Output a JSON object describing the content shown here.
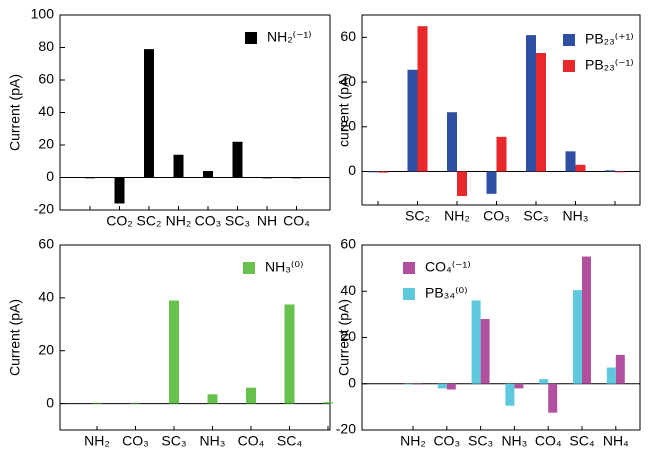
{
  "chart_data": [
    {
      "type": "bar",
      "ylabel": "Current (pA)",
      "categories": [
        null,
        "CO₂",
        "SC₂",
        "NH₂",
        "CO₃",
        "SC₃",
        "NH",
        "CO₄"
      ],
      "series": [
        {
          "name": "NH₂⁽⁻¹⁾",
          "color": "#000000",
          "values": [
            0,
            -16,
            79,
            14,
            4,
            22,
            -0.3,
            0
          ]
        }
      ],
      "ylim": [
        -20,
        100
      ],
      "yticks": [
        -20,
        0,
        20,
        40,
        60,
        80,
        100
      ]
    },
    {
      "type": "bar",
      "ylabel": "current (pA)",
      "categories": [
        null,
        "SC₂",
        "NH₂",
        "CO₃",
        "SC₃",
        "NH₃",
        null
      ],
      "series": [
        {
          "name": "PB₂₃⁽⁺¹⁾",
          "color": "#2f4fa3",
          "values": [
            0,
            45.5,
            26.5,
            -10,
            61,
            9,
            0.5
          ]
        },
        {
          "name": "PB₂₃⁽⁻¹⁾",
          "color": "#e8282b",
          "values": [
            -0.5,
            65,
            -11,
            15.5,
            53,
            3,
            0
          ]
        }
      ],
      "ylim": [
        -15,
        70
      ],
      "yticks": [
        0,
        20,
        40,
        60
      ]
    },
    {
      "type": "bar",
      "ylabel": "Current (pA)",
      "categories": [
        "NH₂",
        "CO₃",
        "SC₃",
        "NH₃",
        "CO₄",
        "SC₄",
        null
      ],
      "series": [
        {
          "name": "NH₃⁽⁰⁾",
          "color": "#66c14d",
          "values": [
            0.3,
            0.3,
            39,
            3.5,
            6,
            37.5,
            0.5
          ]
        }
      ],
      "ylim": [
        -10,
        60
      ],
      "yticks": [
        0,
        20,
        40,
        60
      ]
    },
    {
      "type": "bar",
      "ylabel": "Current (pA)",
      "categories": [
        "NH₂",
        "CO₃",
        "SC₃",
        "NH₃",
        "CO₄",
        "SC₄",
        "NH₄"
      ],
      "series": [
        {
          "name": "CO₄⁽⁻¹⁾",
          "color": "#b0509e",
          "values": [
            0,
            -2.5,
            28,
            -2,
            -12.5,
            55,
            12.5
          ]
        },
        {
          "name": "PB₃₄⁽⁰⁾",
          "color": "#5ec8dc",
          "values": [
            0,
            -2,
            36,
            -9.5,
            2,
            40.5,
            7
          ]
        }
      ],
      "ylim": [
        -20,
        60
      ],
      "yticks": [
        -20,
        0,
        20,
        40,
        60
      ]
    }
  ]
}
